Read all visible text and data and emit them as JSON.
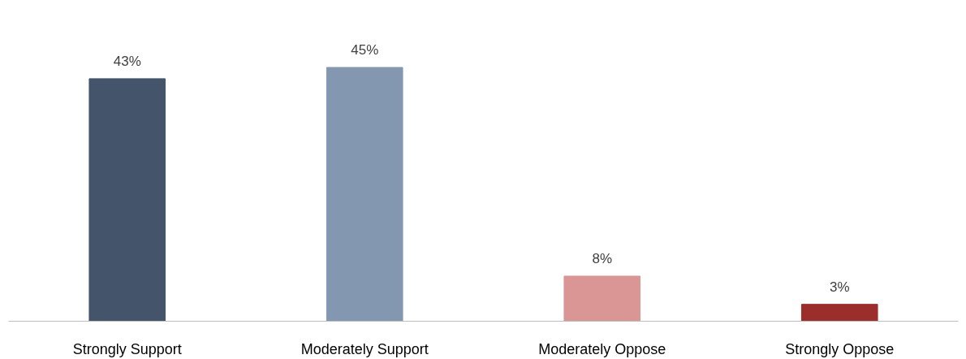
{
  "chart_data": {
    "type": "bar",
    "categories": [
      "Strongly Support",
      "Moderately Support",
      "Moderately Oppose",
      "Strongly Oppose"
    ],
    "values": [
      43,
      45,
      8,
      3
    ],
    "colors": [
      "#44546a",
      "#8497b0",
      "#da9694",
      "#9b2d2b"
    ],
    "value_labels": [
      "43%",
      "45%",
      "8%",
      "3%"
    ],
    "grid": false,
    "tick_labels": "x"
  }
}
